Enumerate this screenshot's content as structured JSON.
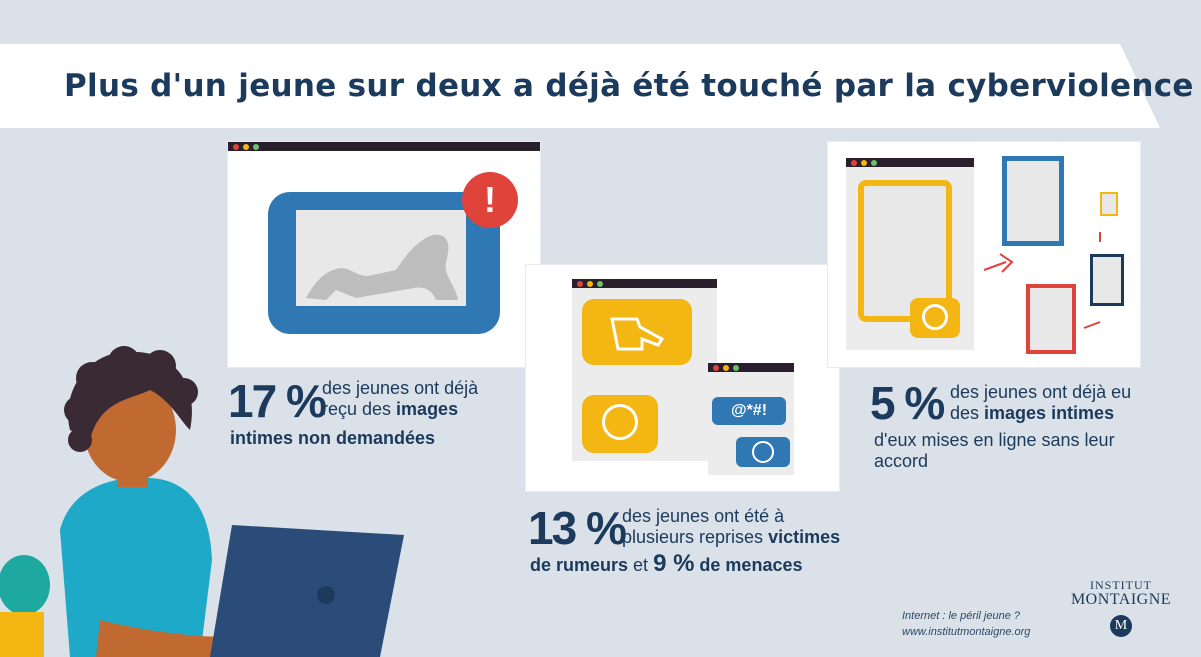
{
  "title": "Plus d'un jeune sur deux a déjà été touché par la cyberviolence",
  "stats": {
    "s1": {
      "value": "17 %",
      "line1": "des jeunes ont déjà",
      "line2_a": "reçu des ",
      "line2_b": "images",
      "line3": "intimes non demandées"
    },
    "s2": {
      "value": "13 %",
      "line1": "des jeunes ont été à",
      "line2_a": "plusieurs reprises ",
      "line2_b": "victimes",
      "line3_a": "de rumeurs",
      "line3_b": " et ",
      "line3_c": "9 %",
      "line3_d": " de menaces"
    },
    "s3": {
      "value": "5 %",
      "line1": "des jeunes ont déjà eu",
      "line2_a": "des ",
      "line2_b": "images intimes",
      "line3": "d'eux mises en ligne sans leur",
      "line4": "accord"
    }
  },
  "chat": {
    "swear": "@*#!"
  },
  "footer": {
    "line1": "Internet : le péril jeune ?",
    "line2": "www.institutmontaigne.org"
  },
  "logo": {
    "line1": "INSTITUT",
    "line2": "MONTAIGNE",
    "mark": "M"
  },
  "colors": {
    "navy": "#1b3a5c",
    "blue": "#2f78b4",
    "yellow": "#f4b612",
    "red": "#e0433a",
    "teal": "#1ea9c9",
    "skin": "#c06a32"
  }
}
